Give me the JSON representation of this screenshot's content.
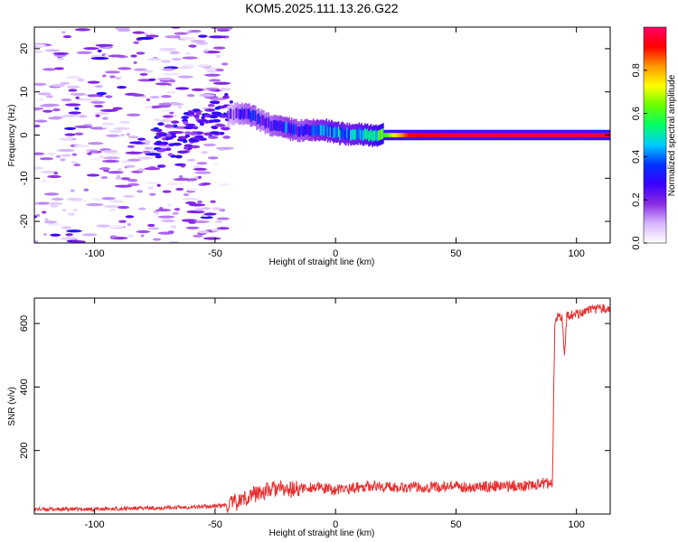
{
  "figure": {
    "title": "KOM5.2025.111.13.26.G22"
  },
  "chart_data": [
    {
      "type": "heatmap",
      "title": "KOM5.2025.111.13.26.G22",
      "xlabel": "Height of straight line (km)",
      "ylabel": "Frequency (Hz)",
      "xlim": [
        -125,
        114
      ],
      "ylim": [
        -25,
        25
      ],
      "xticks": [
        -100,
        -50,
        0,
        50,
        100
      ],
      "yticks": [
        -20,
        -10,
        0,
        10,
        20
      ],
      "colorbar": {
        "label": "Normalized spectral amplitude",
        "range": [
          0,
          1
        ],
        "ticks": [
          "0.0",
          "0.2",
          "0.4",
          "0.6",
          "0.8"
        ],
        "colormap": [
          "#ffffff",
          "#d6b6ff",
          "#8a2be2",
          "#3a00ff",
          "#0033ff",
          "#00ccff",
          "#00ff66",
          "#66ff00",
          "#ffff00",
          "#ff9900",
          "#ff0000",
          "#ff0066"
        ]
      },
      "ridge": {
        "name": "",
        "x": [
          -45,
          -40,
          -35,
          -30,
          -25,
          -20,
          -15,
          -10,
          -5,
          0,
          5,
          10,
          15,
          20,
          30,
          50,
          70,
          90,
          100,
          114
        ],
        "y": [
          4.5,
          5,
          4.5,
          3,
          2,
          1.5,
          1,
          1,
          1.2,
          0.5,
          0.2,
          0.3,
          0,
          0,
          0,
          0,
          0,
          0,
          0,
          0
        ],
        "amplitude": [
          0.15,
          0.25,
          0.3,
          0.25,
          0.3,
          0.35,
          0.3,
          0.35,
          0.4,
          0.45,
          0.4,
          0.45,
          0.5,
          0.6,
          0.9,
          0.95,
          0.95,
          0.95,
          0.95,
          0.95
        ]
      },
      "noise": {
        "x_range": [
          -125,
          -45
        ],
        "y_range": [
          -25,
          25
        ],
        "amplitude_range": [
          0.02,
          0.2
        ]
      }
    },
    {
      "type": "line",
      "title": "",
      "xlabel": "Height of straight line (km)",
      "ylabel": "SNR (v/v)",
      "xlim": [
        -125,
        114
      ],
      "ylim": [
        0,
        680
      ],
      "xticks": [
        -100,
        -50,
        0,
        50,
        100
      ],
      "yticks": [
        200,
        400,
        600
      ],
      "color": "#e83030",
      "series": [
        {
          "name": "",
          "x": [
            -125,
            -110,
            -100,
            -90,
            -80,
            -70,
            -60,
            -50,
            -45,
            -40,
            -35,
            -30,
            -25,
            -20,
            -15,
            -10,
            -5,
            0,
            5,
            10,
            15,
            20,
            30,
            40,
            50,
            60,
            70,
            80,
            85,
            90,
            91,
            92,
            94,
            95,
            96,
            100,
            105,
            110,
            114
          ],
          "y": [
            15,
            15,
            15,
            17,
            18,
            20,
            22,
            25,
            28,
            40,
            60,
            70,
            80,
            75,
            80,
            85,
            80,
            75,
            80,
            85,
            90,
            85,
            85,
            85,
            85,
            85,
            88,
            90,
            95,
            100,
            600,
            620,
            620,
            500,
            625,
            630,
            640,
            645,
            650
          ]
        }
      ]
    }
  ]
}
